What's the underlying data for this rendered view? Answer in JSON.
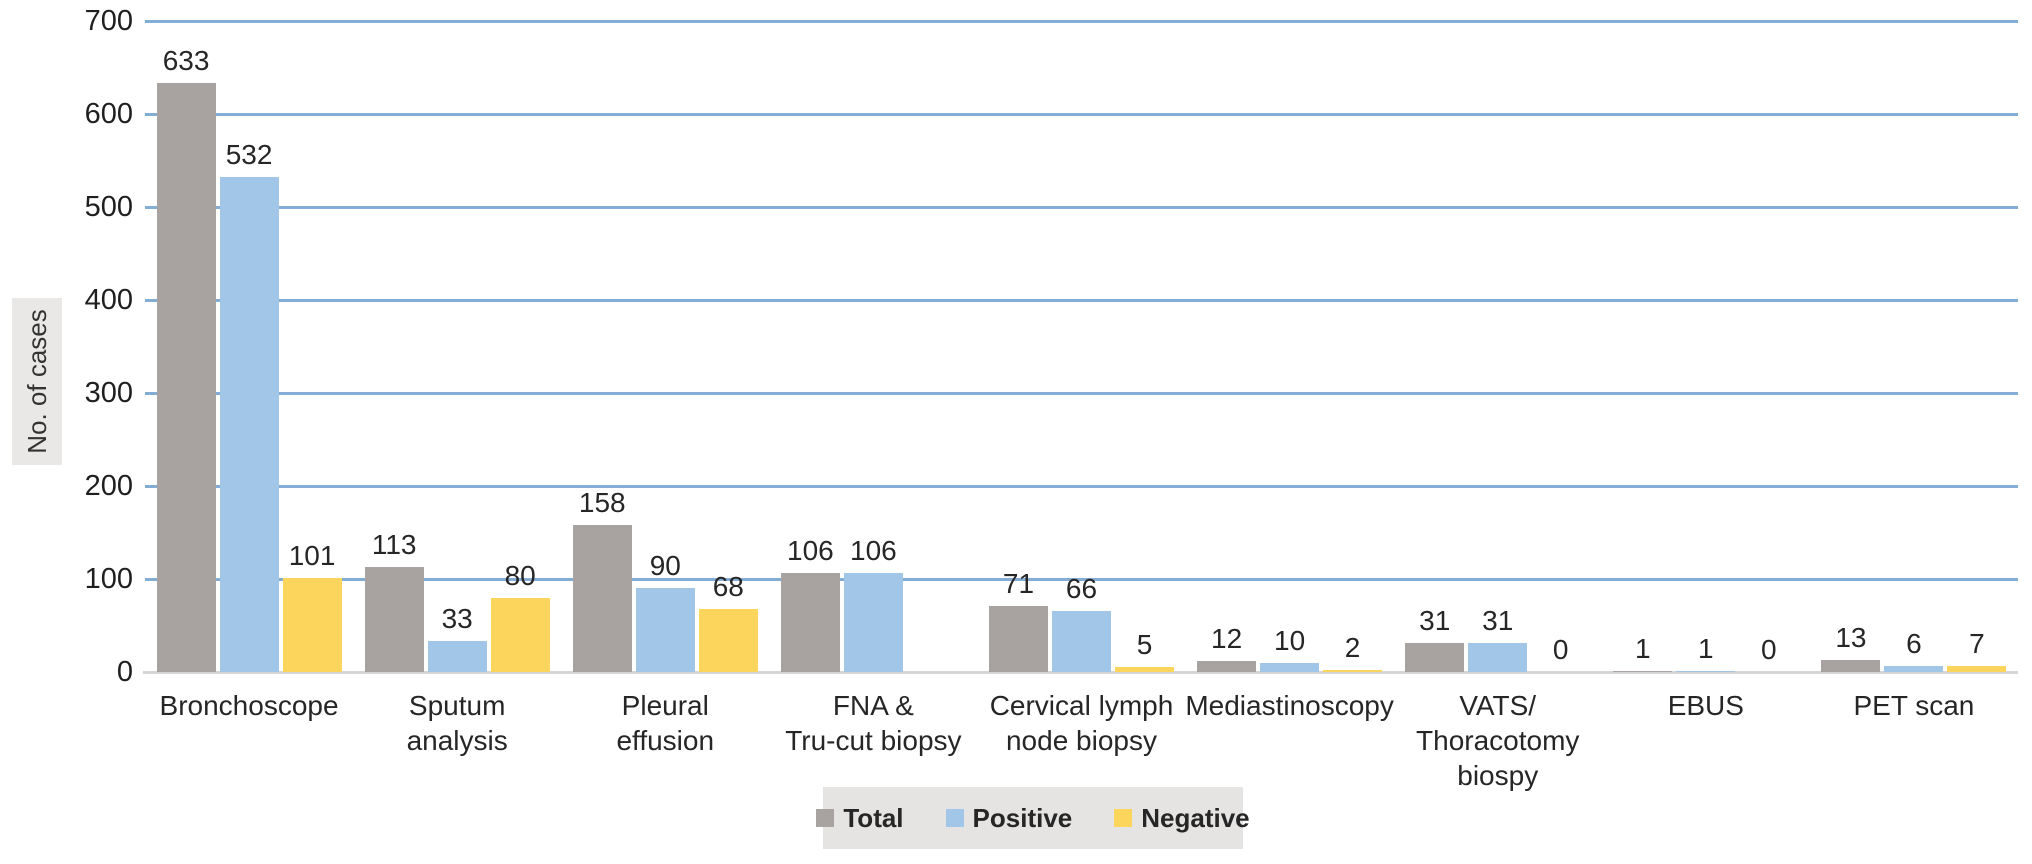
{
  "chart_data": {
    "type": "bar",
    "title": "",
    "xlabel": "",
    "ylabel": "No. of cases",
    "ylim": [
      0,
      700
    ],
    "ytick_step": 100,
    "yticks": [
      0,
      100,
      200,
      300,
      400,
      500,
      600,
      700
    ],
    "grid": "horizontal",
    "legend_position": "bottom-center",
    "categories": [
      "Bronchoscope",
      "Sputum analysis",
      "Pleural effusion",
      "FNA & Tru-cut biopsy",
      "Cervical lymph node biopsy",
      "Mediastinoscopy",
      "VATS/ Thoracotomy biospy",
      "EBUS",
      "PET scan"
    ],
    "category_label_lines": [
      [
        "Bronchoscope"
      ],
      [
        "Sputum",
        "analysis"
      ],
      [
        "Pleural",
        "effusion"
      ],
      [
        "FNA &",
        "Tru-cut biopsy"
      ],
      [
        "Cervical lymph",
        "node biopsy"
      ],
      [
        "Mediastinoscopy"
      ],
      [
        "VATS/",
        "Thoracotomy",
        "biospy"
      ],
      [
        "EBUS"
      ],
      [
        "PET scan"
      ]
    ],
    "series": [
      {
        "name": "Total",
        "color": "#a8a3a0",
        "values": [
          633,
          113,
          158,
          106,
          71,
          12,
          31,
          1,
          13
        ]
      },
      {
        "name": "Positive",
        "color": "#a2c6e8",
        "values": [
          532,
          33,
          90,
          106,
          66,
          10,
          31,
          1,
          6
        ]
      },
      {
        "name": "Negative",
        "color": "#fcd55c",
        "values": [
          101,
          80,
          68,
          null,
          5,
          2,
          0,
          0,
          7
        ]
      }
    ],
    "colors": {
      "gridline": "#84add6",
      "baseline": "#d6d6d6",
      "text": "#262626",
      "legend_bg": "#e5e4e3",
      "ylabel_bg": "#e9e8e7"
    }
  }
}
